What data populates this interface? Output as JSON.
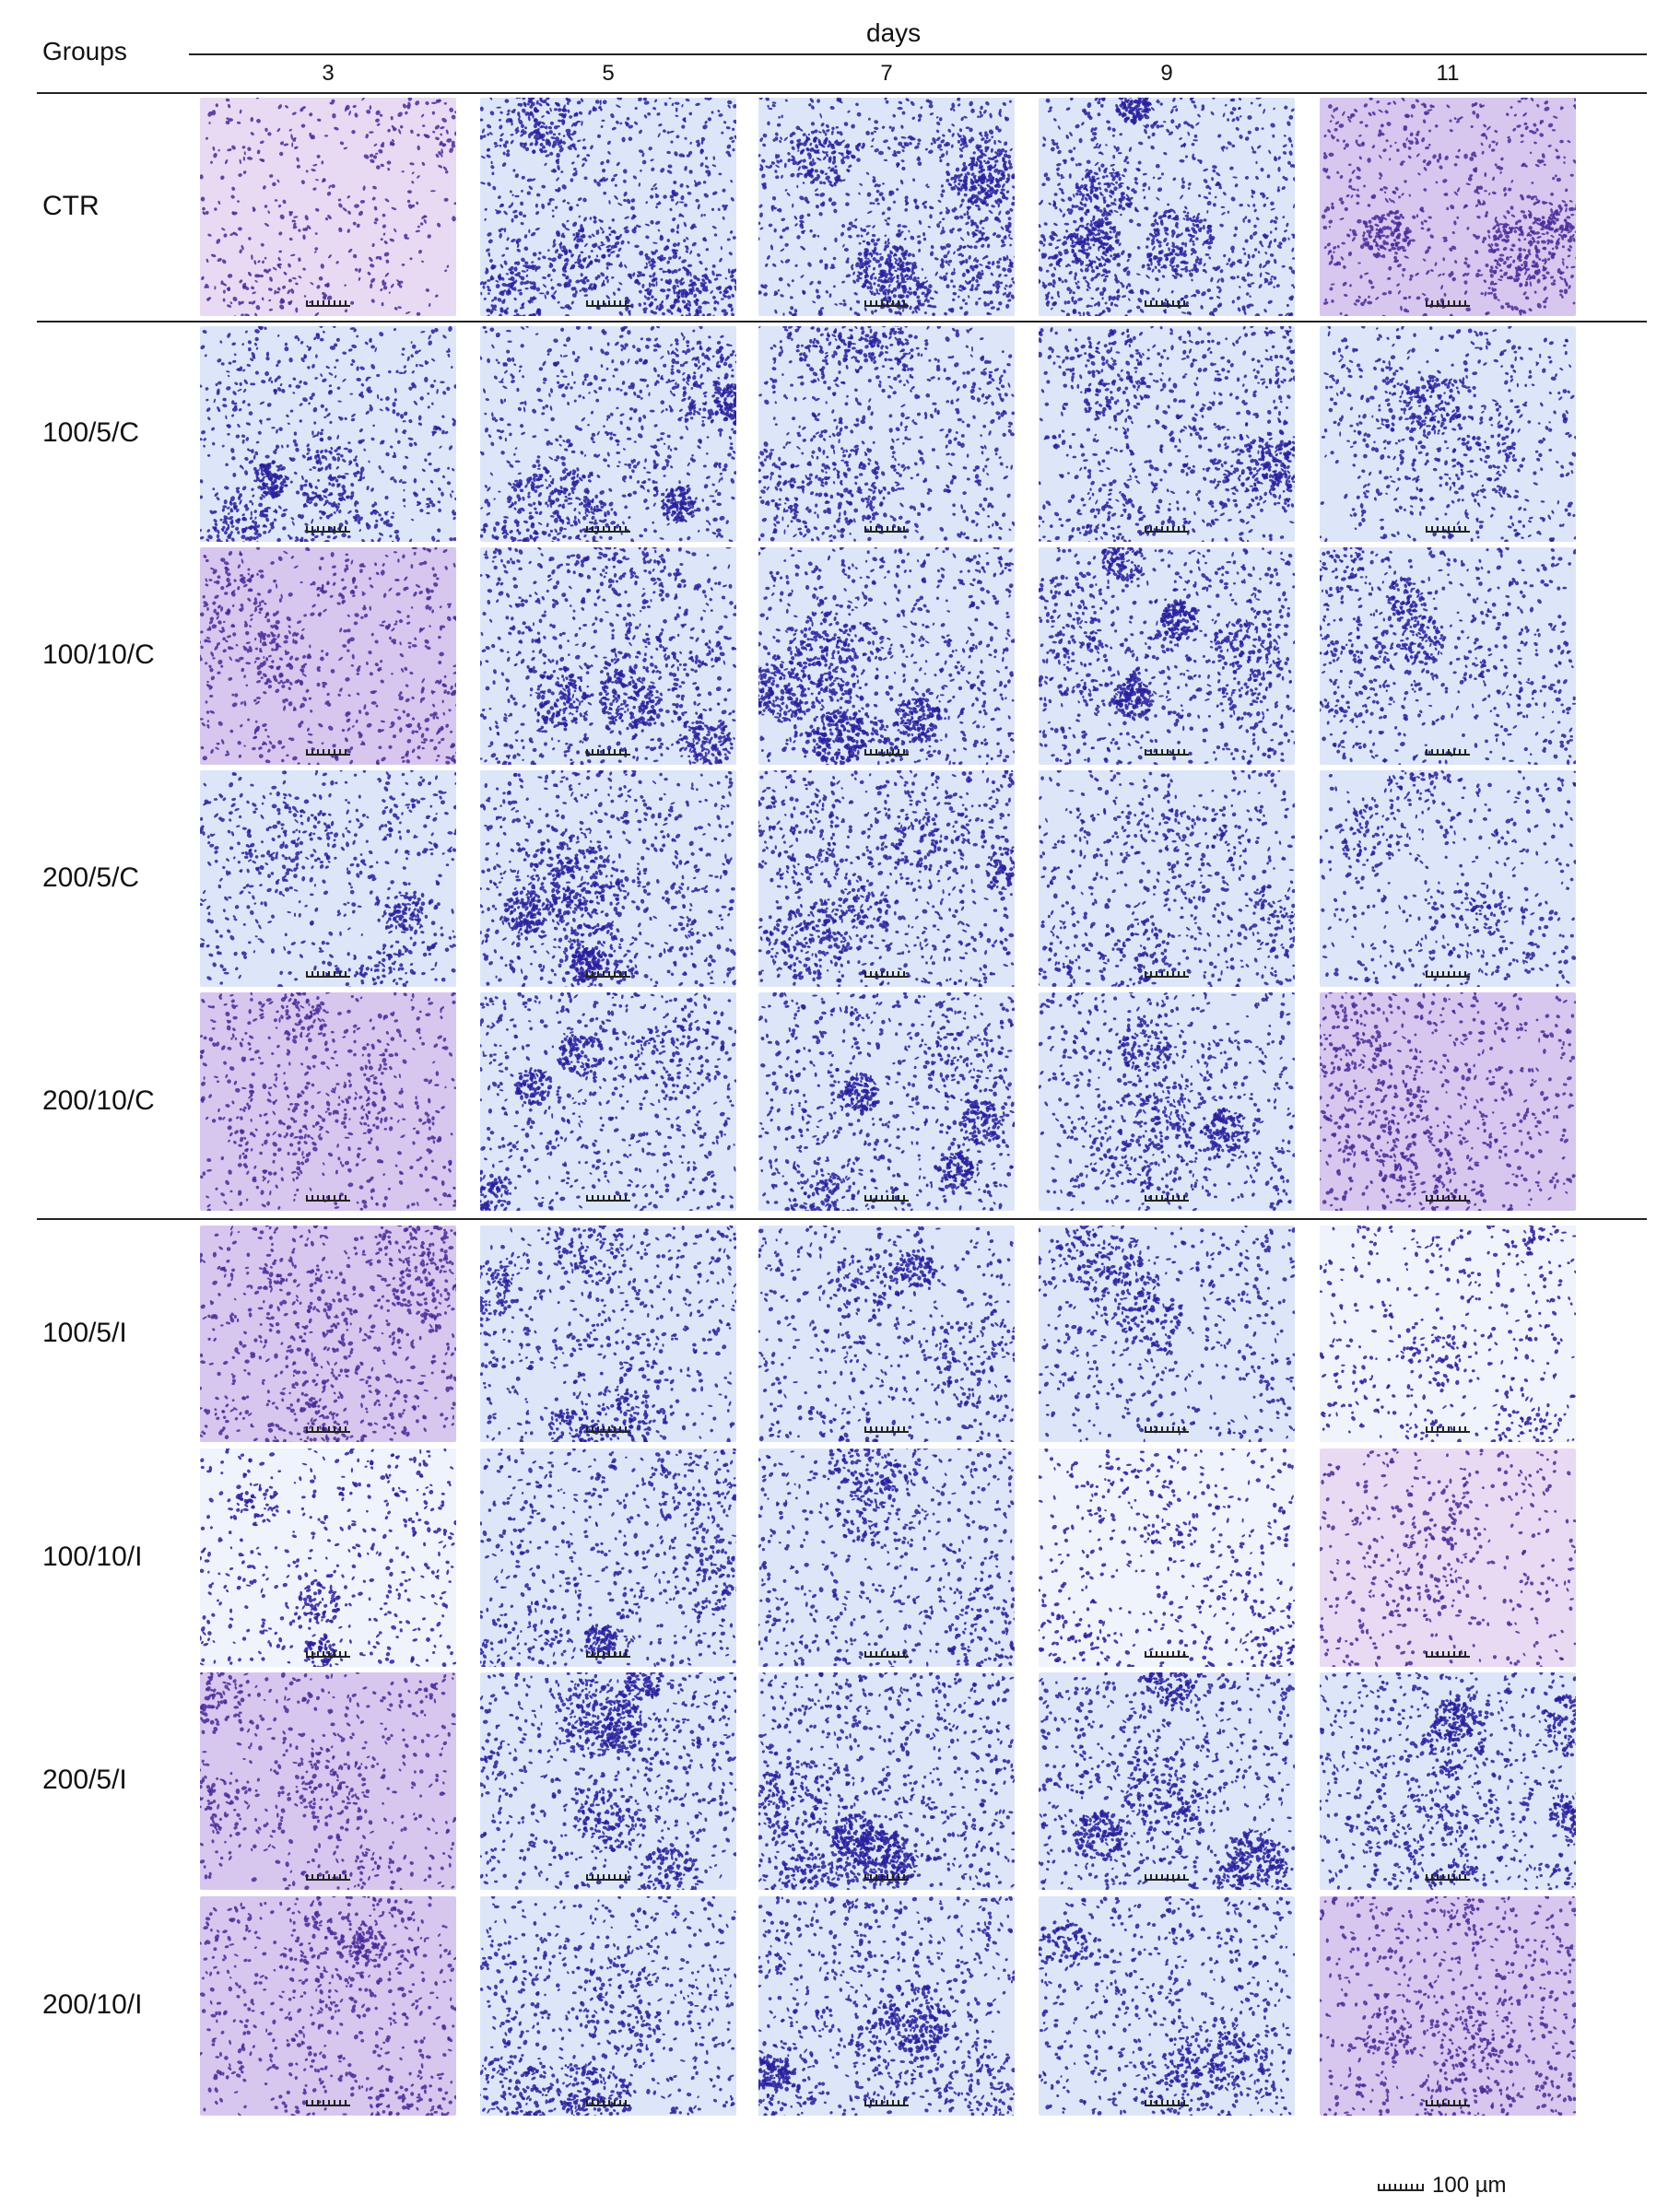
{
  "header": {
    "groups_label": "Groups",
    "days_label": "days",
    "days": [
      "3",
      "5",
      "7",
      "9",
      "11"
    ]
  },
  "rows": [
    {
      "label": "CTR",
      "densities": [
        0.25,
        0.85,
        0.9,
        0.85,
        0.6
      ],
      "tones": [
        "pale-violet",
        "blue",
        "blue",
        "blue",
        "violet"
      ]
    },
    {
      "label": "100/5/C",
      "densities": [
        0.6,
        0.8,
        0.65,
        0.7,
        0.45
      ],
      "tones": [
        "blue",
        "blue",
        "blue",
        "blue",
        "blue"
      ]
    },
    {
      "label": "100/10/C",
      "densities": [
        0.45,
        0.8,
        0.9,
        0.85,
        0.55
      ],
      "tones": [
        "violet",
        "blue",
        "blue",
        "blue",
        "blue"
      ]
    },
    {
      "label": "200/5/C",
      "densities": [
        0.45,
        0.8,
        0.75,
        0.5,
        0.35
      ],
      "tones": [
        "blue",
        "blue",
        "blue",
        "blue",
        "blue"
      ]
    },
    {
      "label": "200/10/C",
      "densities": [
        0.4,
        0.6,
        0.75,
        0.6,
        0.5
      ],
      "tones": [
        "violet",
        "blue",
        "blue",
        "blue",
        "violet"
      ]
    },
    {
      "label": "100/5/I",
      "densities": [
        0.55,
        0.6,
        0.45,
        0.45,
        0.3
      ],
      "tones": [
        "violet",
        "blue",
        "blue",
        "blue",
        "pale-blue"
      ]
    },
    {
      "label": "100/10/I",
      "densities": [
        0.35,
        0.55,
        0.5,
        0.35,
        0.25
      ],
      "tones": [
        "pale-blue",
        "blue",
        "blue",
        "pale-blue",
        "pale-violet"
      ]
    },
    {
      "label": "200/5/I",
      "densities": [
        0.4,
        0.8,
        0.9,
        0.85,
        0.75
      ],
      "tones": [
        "violet",
        "blue",
        "blue",
        "blue",
        "blue"
      ]
    },
    {
      "label": "200/10/I",
      "densities": [
        0.5,
        0.6,
        0.75,
        0.55,
        0.5
      ],
      "tones": [
        "violet",
        "blue",
        "blue",
        "blue",
        "violet"
      ]
    }
  ],
  "scale_legend": {
    "label": "100 µm"
  },
  "colors": {
    "stain_blue": "#2a1e9c",
    "stain_violet": "#4a2a9a",
    "bg_blue": "#dce6f8",
    "bg_pale_blue": "#eef3fc",
    "bg_violet": "#d7c7ee",
    "bg_pale_violet": "#e8daf2"
  }
}
